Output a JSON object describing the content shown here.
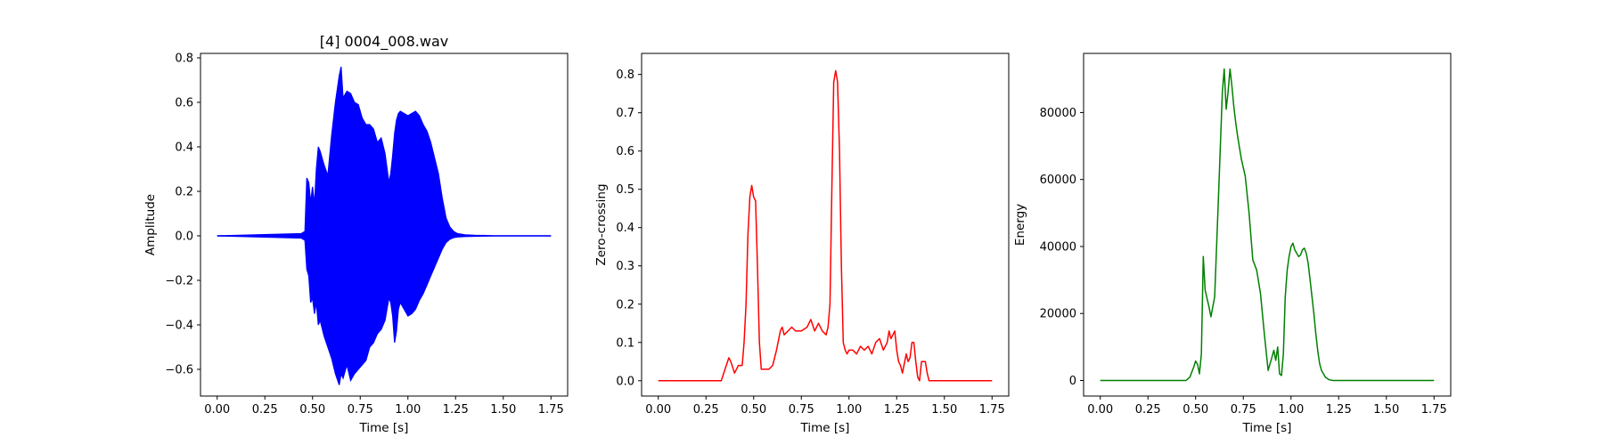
{
  "figure": {
    "background": "#ffffff"
  },
  "chart_data": [
    {
      "type": "line",
      "title": "[4] 0004_008.wav",
      "xlabel": "Time [s]",
      "ylabel": "Amplitude",
      "xlim": [
        -0.0875,
        1.8375
      ],
      "ylim": [
        -0.72,
        0.82
      ],
      "xticks": [
        0.0,
        0.25,
        0.5,
        0.75,
        1.0,
        1.25,
        1.5,
        1.75
      ],
      "xtick_labels": [
        "0.00",
        "0.25",
        "0.50",
        "0.75",
        "1.00",
        "1.25",
        "1.50",
        "1.75"
      ],
      "yticks": [
        -0.6,
        -0.4,
        -0.2,
        0.0,
        0.2,
        0.4,
        0.6,
        0.8
      ],
      "ytick_labels": [
        "−0.6",
        "−0.4",
        "−0.2",
        "0.0",
        "0.2",
        "0.4",
        "0.6",
        "0.8"
      ],
      "grid": false,
      "series": [
        {
          "color": "#0000ff",
          "render": "envelope",
          "x": [
            0.0,
            0.44,
            0.46,
            0.47,
            0.48,
            0.49,
            0.5,
            0.51,
            0.52,
            0.53,
            0.54,
            0.56,
            0.58,
            0.6,
            0.62,
            0.64,
            0.65,
            0.66,
            0.68,
            0.7,
            0.72,
            0.74,
            0.76,
            0.78,
            0.8,
            0.82,
            0.84,
            0.86,
            0.88,
            0.9,
            0.91,
            0.92,
            0.93,
            0.94,
            0.95,
            0.96,
            0.98,
            1.0,
            1.02,
            1.04,
            1.06,
            1.08,
            1.1,
            1.12,
            1.14,
            1.16,
            1.18,
            1.2,
            1.22,
            1.24,
            1.26,
            1.3,
            1.35,
            1.4,
            1.45,
            1.75
          ],
          "upper": [
            0.0,
            0.01,
            0.02,
            0.26,
            0.24,
            0.15,
            0.22,
            0.14,
            0.3,
            0.4,
            0.38,
            0.32,
            0.27,
            0.45,
            0.6,
            0.72,
            0.76,
            0.62,
            0.65,
            0.64,
            0.6,
            0.59,
            0.53,
            0.5,
            0.5,
            0.48,
            0.42,
            0.44,
            0.37,
            0.24,
            0.28,
            0.36,
            0.46,
            0.52,
            0.55,
            0.56,
            0.55,
            0.54,
            0.55,
            0.56,
            0.54,
            0.5,
            0.47,
            0.42,
            0.35,
            0.28,
            0.17,
            0.08,
            0.04,
            0.02,
            0.01,
            0.005,
            0.003,
            0.002,
            0.0,
            0.0
          ],
          "lower": [
            0.0,
            -0.01,
            -0.02,
            -0.15,
            -0.18,
            -0.3,
            -0.28,
            -0.35,
            -0.3,
            -0.4,
            -0.38,
            -0.45,
            -0.5,
            -0.55,
            -0.62,
            -0.67,
            -0.62,
            -0.64,
            -0.58,
            -0.65,
            -0.62,
            -0.6,
            -0.58,
            -0.56,
            -0.5,
            -0.48,
            -0.44,
            -0.42,
            -0.38,
            -0.28,
            -0.3,
            -0.36,
            -0.48,
            -0.43,
            -0.33,
            -0.3,
            -0.33,
            -0.36,
            -0.35,
            -0.33,
            -0.29,
            -0.26,
            -0.22,
            -0.18,
            -0.14,
            -0.1,
            -0.06,
            -0.03,
            -0.015,
            -0.008,
            -0.005,
            -0.003,
            -0.002,
            -0.001,
            0.0,
            0.0
          ]
        }
      ]
    },
    {
      "type": "line",
      "title": "",
      "xlabel": "Time [s]",
      "ylabel": "Zero-crossing",
      "xlim": [
        -0.0875,
        1.8375
      ],
      "ylim": [
        -0.04,
        0.855
      ],
      "xticks": [
        0.0,
        0.25,
        0.5,
        0.75,
        1.0,
        1.25,
        1.5,
        1.75
      ],
      "xtick_labels": [
        "0.00",
        "0.25",
        "0.50",
        "0.75",
        "1.00",
        "1.25",
        "1.50",
        "1.75"
      ],
      "yticks": [
        0.0,
        0.1,
        0.2,
        0.3,
        0.4,
        0.5,
        0.6,
        0.7,
        0.8
      ],
      "ytick_labels": [
        "0.0",
        "0.1",
        "0.2",
        "0.3",
        "0.4",
        "0.5",
        "0.6",
        "0.7",
        "0.8"
      ],
      "grid": false,
      "series": [
        {
          "color": "#ff0000",
          "x": [
            0.0,
            0.33,
            0.35,
            0.37,
            0.38,
            0.4,
            0.42,
            0.44,
            0.45,
            0.46,
            0.47,
            0.48,
            0.49,
            0.5,
            0.51,
            0.52,
            0.53,
            0.54,
            0.56,
            0.58,
            0.6,
            0.62,
            0.64,
            0.65,
            0.66,
            0.68,
            0.7,
            0.72,
            0.75,
            0.78,
            0.8,
            0.82,
            0.84,
            0.86,
            0.88,
            0.89,
            0.9,
            0.91,
            0.92,
            0.93,
            0.94,
            0.95,
            0.96,
            0.97,
            0.98,
            0.99,
            1.0,
            1.02,
            1.04,
            1.06,
            1.08,
            1.1,
            1.12,
            1.14,
            1.16,
            1.18,
            1.2,
            1.21,
            1.22,
            1.23,
            1.24,
            1.25,
            1.26,
            1.27,
            1.28,
            1.3,
            1.31,
            1.32,
            1.33,
            1.34,
            1.35,
            1.36,
            1.37,
            1.38,
            1.39,
            1.4,
            1.41,
            1.42,
            1.75
          ],
          "y": [
            0.0,
            0.0,
            0.03,
            0.06,
            0.05,
            0.02,
            0.04,
            0.04,
            0.1,
            0.2,
            0.38,
            0.48,
            0.51,
            0.48,
            0.47,
            0.3,
            0.1,
            0.03,
            0.03,
            0.03,
            0.04,
            0.08,
            0.13,
            0.14,
            0.12,
            0.13,
            0.14,
            0.13,
            0.13,
            0.14,
            0.16,
            0.13,
            0.15,
            0.13,
            0.12,
            0.14,
            0.2,
            0.5,
            0.78,
            0.81,
            0.78,
            0.6,
            0.3,
            0.1,
            0.08,
            0.07,
            0.08,
            0.08,
            0.07,
            0.09,
            0.08,
            0.09,
            0.07,
            0.1,
            0.11,
            0.08,
            0.1,
            0.13,
            0.11,
            0.12,
            0.13,
            0.08,
            0.05,
            0.04,
            0.02,
            0.07,
            0.05,
            0.06,
            0.1,
            0.1,
            0.05,
            0.01,
            0.0,
            0.05,
            0.05,
            0.05,
            0.02,
            0.0,
            0.0
          ]
        }
      ]
    },
    {
      "type": "line",
      "title": "",
      "xlabel": "Time [s]",
      "ylabel": "Energy",
      "xlim": [
        -0.0875,
        1.8375
      ],
      "ylim": [
        -4650,
        97650
      ],
      "xticks": [
        0.0,
        0.25,
        0.5,
        0.75,
        1.0,
        1.25,
        1.5,
        1.75
      ],
      "xtick_labels": [
        "0.00",
        "0.25",
        "0.50",
        "0.75",
        "1.00",
        "1.25",
        "1.50",
        "1.75"
      ],
      "yticks": [
        0,
        20000,
        40000,
        60000,
        80000
      ],
      "ytick_labels": [
        "0",
        "20000",
        "40000",
        "60000",
        "80000"
      ],
      "grid": false,
      "series": [
        {
          "color": "#008000",
          "x": [
            0.0,
            0.4,
            0.45,
            0.47,
            0.49,
            0.5,
            0.51,
            0.52,
            0.53,
            0.54,
            0.55,
            0.57,
            0.58,
            0.6,
            0.62,
            0.64,
            0.65,
            0.66,
            0.67,
            0.68,
            0.69,
            0.7,
            0.71,
            0.72,
            0.74,
            0.76,
            0.78,
            0.8,
            0.82,
            0.84,
            0.86,
            0.88,
            0.9,
            0.91,
            0.92,
            0.93,
            0.94,
            0.95,
            0.96,
            0.97,
            0.98,
            0.99,
            1.0,
            1.01,
            1.02,
            1.03,
            1.04,
            1.05,
            1.06,
            1.07,
            1.08,
            1.09,
            1.1,
            1.11,
            1.12,
            1.13,
            1.14,
            1.15,
            1.16,
            1.18,
            1.2,
            1.22,
            1.25,
            1.75
          ],
          "y": [
            0,
            0,
            0,
            1000,
            4000,
            5800,
            4800,
            2000,
            8000,
            37000,
            27000,
            22000,
            19000,
            25000,
            55000,
            86000,
            93000,
            81000,
            86000,
            93000,
            88000,
            82000,
            77000,
            73000,
            66000,
            61000,
            50000,
            36000,
            33000,
            26000,
            14000,
            3000,
            7000,
            9000,
            6000,
            10000,
            2000,
            1500,
            8000,
            25000,
            33000,
            37000,
            40000,
            41000,
            39000,
            38000,
            37000,
            37500,
            39000,
            39500,
            38000,
            35000,
            30000,
            25000,
            20000,
            14000,
            9000,
            5000,
            3000,
            1000,
            200,
            0,
            0,
            0
          ]
        }
      ]
    }
  ]
}
